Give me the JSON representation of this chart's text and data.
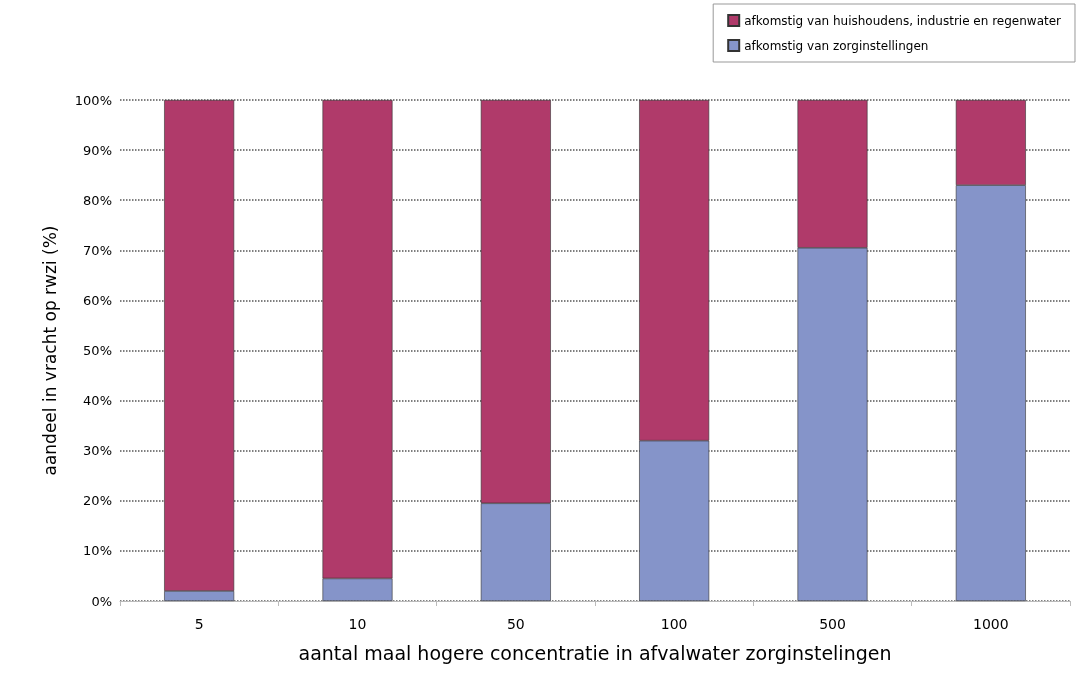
{
  "chart_data": {
    "type": "bar",
    "stacked": true,
    "categories": [
      "5",
      "10",
      "50",
      "100",
      "500",
      "1000"
    ],
    "series": [
      {
        "name": "afkomstig van zorginstellingen",
        "color": "#8594c9",
        "values": [
          2,
          4.5,
          19.5,
          32,
          70.5,
          83
        ]
      },
      {
        "name": "afkomstig van huishoudens, industrie en regenwater",
        "color": "#b03a6a",
        "values": [
          98,
          95.5,
          80.5,
          68,
          29.5,
          17
        ]
      }
    ],
    "xlabel": "aantal maal hogere concentratie in afvalwater zorginstelingen",
    "ylabel": "aandeel in vracht op rwzi (%)",
    "ylim": [
      0,
      100
    ],
    "yticks": [
      {
        "value": 0,
        "label": "0%"
      },
      {
        "value": 10,
        "label": "10%"
      },
      {
        "value": 20,
        "label": "20%"
      },
      {
        "value": 30,
        "label": "30%"
      },
      {
        "value": 40,
        "label": "40%"
      },
      {
        "value": 50,
        "label": "50%"
      },
      {
        "value": 60,
        "label": "60%"
      },
      {
        "value": 70,
        "label": "70%"
      },
      {
        "value": 80,
        "label": "80%"
      },
      {
        "value": 90,
        "label": "90%"
      },
      {
        "value": 100,
        "label": "100%"
      }
    ],
    "grid": "y",
    "legend": "top right",
    "line_style": "dotted"
  }
}
